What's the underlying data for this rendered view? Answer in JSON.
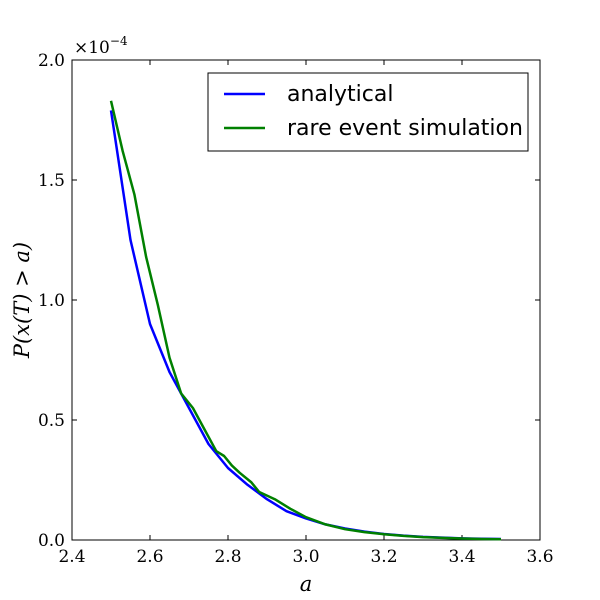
{
  "chart_data": {
    "type": "line",
    "title": "",
    "xlabel": "a",
    "ylabel": "P(x(T) > a)",
    "xlim": [
      2.4,
      3.6
    ],
    "ylim": [
      0.0,
      2.0
    ],
    "y_scale_factor_label": "×10",
    "y_scale_exponent": "−4",
    "x_ticks": [
      "2.4",
      "2.6",
      "2.8",
      "3.0",
      "3.2",
      "3.4",
      "3.6"
    ],
    "y_ticks": [
      "0.0",
      "0.5",
      "1.0",
      "1.5",
      "2.0"
    ],
    "grid": false,
    "legend_position": "top-right",
    "series": [
      {
        "name": "analytical",
        "color": "#0000ff",
        "x": [
          2.5,
          2.55,
          2.6,
          2.65,
          2.7,
          2.75,
          2.8,
          2.85,
          2.9,
          2.95,
          3.0,
          3.05,
          3.1,
          3.15,
          3.2,
          3.25,
          3.3,
          3.35,
          3.4,
          3.45,
          3.5
        ],
        "y": [
          1.79,
          1.25,
          0.9,
          0.7,
          0.55,
          0.4,
          0.3,
          0.23,
          0.17,
          0.12,
          0.09,
          0.065,
          0.048,
          0.035,
          0.025,
          0.018,
          0.013,
          0.01,
          0.007,
          0.005,
          0.004
        ]
      },
      {
        "name": "rare event simulation",
        "color": "#008000",
        "x": [
          2.5,
          2.53,
          2.56,
          2.59,
          2.62,
          2.65,
          2.68,
          2.71,
          2.74,
          2.77,
          2.79,
          2.81,
          2.83,
          2.86,
          2.88,
          2.92,
          2.96,
          3.0,
          3.05,
          3.1,
          3.15,
          3.2,
          3.25,
          3.3,
          3.35,
          3.4,
          3.45,
          3.5
        ],
        "y": [
          1.83,
          1.62,
          1.44,
          1.18,
          0.98,
          0.76,
          0.61,
          0.55,
          0.46,
          0.37,
          0.35,
          0.31,
          0.28,
          0.24,
          0.2,
          0.17,
          0.13,
          0.095,
          0.065,
          0.045,
          0.033,
          0.024,
          0.017,
          0.012,
          0.009,
          0.006,
          0.004,
          0.003
        ]
      }
    ]
  }
}
